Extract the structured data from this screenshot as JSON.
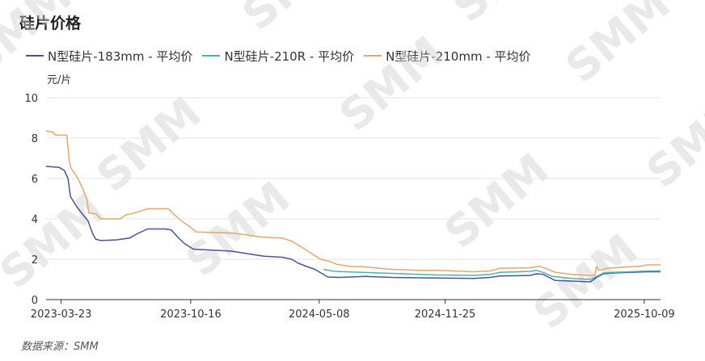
{
  "chart_data": {
    "type": "line",
    "title": "硅片价格",
    "unit_label": "元/片",
    "source": "数据来源：SMM",
    "watermark": "SMM",
    "ylim": [
      0,
      10
    ],
    "yticks": [
      0,
      2,
      4,
      6,
      8,
      10
    ],
    "xlim": [
      "2023-02-27",
      "2025-11-04"
    ],
    "xticks": [
      "2023-03-23",
      "2023-10-16",
      "2024-05-08",
      "2024-11-25",
      "2025-10-09"
    ],
    "grid": true,
    "legend_position": "top-left",
    "series": [
      {
        "name": "N型硅片-183mm - 平均价",
        "color": "#4a5490",
        "points": [
          [
            "2023-02-27",
            6.6
          ],
          [
            "2023-03-20",
            6.55
          ],
          [
            "2023-03-28",
            6.4
          ],
          [
            "2023-04-03",
            6.0
          ],
          [
            "2023-04-07",
            5.1
          ],
          [
            "2023-04-17",
            4.6
          ],
          [
            "2023-04-27",
            4.2
          ],
          [
            "2023-05-05",
            3.9
          ],
          [
            "2023-05-12",
            3.3
          ],
          [
            "2023-05-17",
            3.0
          ],
          [
            "2023-05-25",
            2.93
          ],
          [
            "2023-06-20",
            2.96
          ],
          [
            "2023-07-10",
            3.05
          ],
          [
            "2023-07-25",
            3.3
          ],
          [
            "2023-08-08",
            3.5
          ],
          [
            "2023-09-05",
            3.5
          ],
          [
            "2023-09-15",
            3.45
          ],
          [
            "2023-09-25",
            3.1
          ],
          [
            "2023-10-05",
            2.8
          ],
          [
            "2023-10-20",
            2.5
          ],
          [
            "2023-12-20",
            2.4
          ],
          [
            "2024-01-20",
            2.25
          ],
          [
            "2024-02-10",
            2.15
          ],
          [
            "2024-03-10",
            2.1
          ],
          [
            "2024-03-25",
            2.0
          ],
          [
            "2024-04-05",
            1.8
          ],
          [
            "2024-04-20",
            1.62
          ],
          [
            "2024-05-01",
            1.5
          ],
          [
            "2024-05-12",
            1.3
          ],
          [
            "2024-05-22",
            1.12
          ],
          [
            "2024-06-10",
            1.1
          ],
          [
            "2024-07-20",
            1.15
          ],
          [
            "2024-09-01",
            1.1
          ],
          [
            "2024-11-15",
            1.07
          ],
          [
            "2025-01-10",
            1.05
          ],
          [
            "2025-02-05",
            1.1
          ],
          [
            "2025-02-20",
            1.17
          ],
          [
            "2025-04-10",
            1.2
          ],
          [
            "2025-04-20",
            1.28
          ],
          [
            "2025-05-01",
            1.25
          ],
          [
            "2025-05-10",
            1.1
          ],
          [
            "2025-05-20",
            0.95
          ],
          [
            "2025-06-15",
            0.92
          ],
          [
            "2025-07-15",
            0.88
          ],
          [
            "2025-07-25",
            1.1
          ],
          [
            "2025-08-05",
            1.28
          ],
          [
            "2025-08-20",
            1.32
          ],
          [
            "2025-09-15",
            1.35
          ],
          [
            "2025-10-15",
            1.38
          ],
          [
            "2025-11-04",
            1.38
          ]
        ]
      },
      {
        "name": "N型硅片-210R - 平均价",
        "color": "#4ab2b4",
        "points": [
          [
            "2024-05-15",
            1.5
          ],
          [
            "2024-06-01",
            1.4
          ],
          [
            "2024-07-15",
            1.35
          ],
          [
            "2024-09-01",
            1.3
          ],
          [
            "2024-10-15",
            1.25
          ],
          [
            "2024-11-15",
            1.22
          ],
          [
            "2025-01-10",
            1.2
          ],
          [
            "2025-02-05",
            1.25
          ],
          [
            "2025-02-20",
            1.35
          ],
          [
            "2025-04-10",
            1.4
          ],
          [
            "2025-04-20",
            1.45
          ],
          [
            "2025-05-01",
            1.35
          ],
          [
            "2025-05-15",
            1.15
          ],
          [
            "2025-06-15",
            1.05
          ],
          [
            "2025-07-15",
            1.0
          ],
          [
            "2025-07-25",
            1.15
          ],
          [
            "2025-08-05",
            1.32
          ],
          [
            "2025-08-20",
            1.35
          ],
          [
            "2025-09-15",
            1.38
          ],
          [
            "2025-10-15",
            1.42
          ],
          [
            "2025-11-04",
            1.42
          ]
        ]
      },
      {
        "name": "N型硅片-210mm - 平均价",
        "color": "#e0a96c",
        "points": [
          [
            "2023-02-27",
            8.35
          ],
          [
            "2023-03-10",
            8.3
          ],
          [
            "2023-03-14",
            8.15
          ],
          [
            "2023-04-01",
            8.15
          ],
          [
            "2023-04-05",
            6.9
          ],
          [
            "2023-04-08",
            6.5
          ],
          [
            "2023-04-17",
            6.1
          ],
          [
            "2023-04-25",
            5.6
          ],
          [
            "2023-05-03",
            5.0
          ],
          [
            "2023-05-06",
            4.3
          ],
          [
            "2023-05-18",
            4.25
          ],
          [
            "2023-05-25",
            4.0
          ],
          [
            "2023-06-25",
            4.0
          ],
          [
            "2023-07-05",
            4.2
          ],
          [
            "2023-07-25",
            4.35
          ],
          [
            "2023-08-08",
            4.5
          ],
          [
            "2023-09-10",
            4.5
          ],
          [
            "2023-09-20",
            4.2
          ],
          [
            "2023-10-01",
            3.9
          ],
          [
            "2023-10-15",
            3.6
          ],
          [
            "2023-10-25",
            3.35
          ],
          [
            "2023-12-20",
            3.3
          ],
          [
            "2024-01-15",
            3.2
          ],
          [
            "2024-02-05",
            3.1
          ],
          [
            "2024-03-10",
            3.05
          ],
          [
            "2024-03-25",
            2.9
          ],
          [
            "2024-04-10",
            2.6
          ],
          [
            "2024-04-25",
            2.3
          ],
          [
            "2024-05-10",
            2.0
          ],
          [
            "2024-05-25",
            1.9
          ],
          [
            "2024-06-05",
            1.75
          ],
          [
            "2024-06-25",
            1.65
          ],
          [
            "2024-07-20",
            1.62
          ],
          [
            "2024-09-01",
            1.5
          ],
          [
            "2024-10-15",
            1.45
          ],
          [
            "2024-11-15",
            1.45
          ],
          [
            "2025-01-10",
            1.38
          ],
          [
            "2025-02-05",
            1.42
          ],
          [
            "2025-02-20",
            1.55
          ],
          [
            "2025-04-10",
            1.58
          ],
          [
            "2025-04-25",
            1.65
          ],
          [
            "2025-05-05",
            1.55
          ],
          [
            "2025-05-20",
            1.35
          ],
          [
            "2025-06-15",
            1.25
          ],
          [
            "2025-07-15",
            1.2
          ],
          [
            "2025-07-22",
            1.2
          ],
          [
            "2025-07-25",
            1.65
          ],
          [
            "2025-07-29",
            1.45
          ],
          [
            "2025-08-10",
            1.55
          ],
          [
            "2025-09-01",
            1.6
          ],
          [
            "2025-10-01",
            1.65
          ],
          [
            "2025-10-15",
            1.72
          ],
          [
            "2025-11-04",
            1.72
          ]
        ]
      }
    ]
  }
}
